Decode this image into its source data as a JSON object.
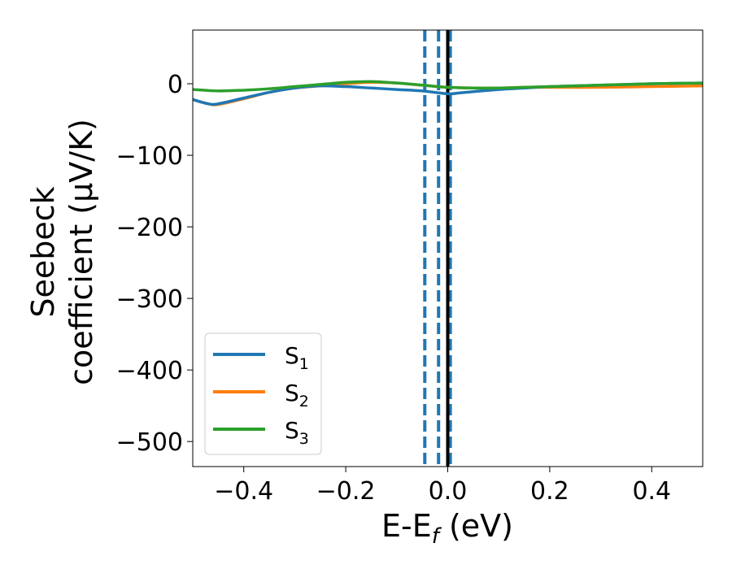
{
  "chart_data": {
    "type": "line",
    "xlabel": {
      "main": "E-E",
      "sub": "f",
      "unit": " (eV)"
    },
    "ylabel": {
      "line1": "Seebeck",
      "line2": "coefficient  (μV/K)"
    },
    "xlim": [
      -0.5,
      0.5
    ],
    "ylim": [
      -535,
      75
    ],
    "xticks": [
      -0.4,
      -0.2,
      0.0,
      0.2,
      0.4
    ],
    "xtick_labels": [
      "−0.4",
      "−0.2",
      "0.0",
      "0.2",
      "0.4"
    ],
    "yticks": [
      0,
      -100,
      -200,
      -300,
      -400,
      -500
    ],
    "ytick_labels": [
      "0",
      "−100",
      "−200",
      "−300",
      "−400",
      "−500"
    ],
    "grid": false,
    "legend_placement": "lower-left",
    "vlines": [
      {
        "x": -0.045,
        "style": "dashed",
        "color": "#1f77b4"
      },
      {
        "x": -0.018,
        "style": "dashed",
        "color": "#1f77b4"
      },
      {
        "x": 0.005,
        "style": "dashed",
        "color": "#1f77b4"
      },
      {
        "x": 0.0,
        "style": "solid",
        "color": "#000000"
      }
    ],
    "series": [
      {
        "name": "S",
        "sub": "1",
        "color": "#1f77b4",
        "x": [
          -0.5,
          -0.47,
          -0.45,
          -0.4,
          -0.35,
          -0.3,
          -0.25,
          -0.2,
          -0.15,
          -0.1,
          -0.05,
          0.0,
          0.02,
          0.05,
          0.1,
          0.15,
          0.2,
          0.3,
          0.4,
          0.5
        ],
        "y": [
          -22,
          -28,
          -28,
          -20,
          -12,
          -6,
          -3,
          -4,
          -6,
          -8,
          -10,
          -14,
          -13,
          -11,
          -8,
          -6,
          -4,
          -2,
          0,
          1
        ]
      },
      {
        "name": "S",
        "sub": "2",
        "color": "#ff7f0e",
        "x": [
          -0.5,
          -0.47,
          -0.45,
          -0.4,
          -0.35,
          -0.3,
          -0.25,
          -0.2,
          -0.15,
          -0.1,
          -0.05,
          0.0,
          0.05,
          0.1,
          0.15,
          0.2,
          0.3,
          0.4,
          0.5
        ],
        "y": [
          -22,
          -28,
          -29,
          -21,
          -12,
          -6,
          -3,
          0,
          2,
          1,
          -2,
          -5,
          -6,
          -6,
          -5,
          -5,
          -5,
          -4,
          -3
        ]
      },
      {
        "name": "S",
        "sub": "3",
        "color": "#2ca02c",
        "x": [
          -0.5,
          -0.45,
          -0.4,
          -0.35,
          -0.3,
          -0.25,
          -0.2,
          -0.15,
          -0.1,
          -0.05,
          0.0,
          0.05,
          0.1,
          0.15,
          0.2,
          0.3,
          0.4,
          0.5
        ],
        "y": [
          -8,
          -10,
          -9,
          -7,
          -4,
          -1,
          2,
          3,
          1,
          -2,
          -5,
          -6,
          -6,
          -5,
          -4,
          -2,
          0,
          1
        ]
      }
    ]
  }
}
